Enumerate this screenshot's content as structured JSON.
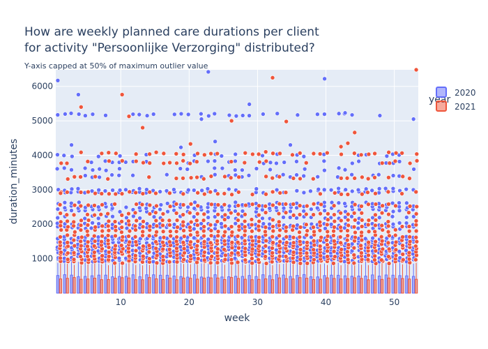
{
  "chart_data": {
    "type": "box",
    "title_lines": [
      "How are weekly planned care durations per client",
      "for activity \"Persoonlijke Verzorging\" distributed?"
    ],
    "subtitle": "Y-axis capped at 50% of maximum outlier value",
    "xlabel": "week",
    "ylabel": "duration_minutes",
    "xlim": [
      0.5,
      53.5
    ],
    "ylim": [
      0,
      6480
    ],
    "xticks": [
      10,
      20,
      30,
      40,
      50
    ],
    "yticks": [
      1000,
      2000,
      3000,
      4000,
      5000,
      6000
    ],
    "xtick_labels": [
      "10",
      "20",
      "30",
      "40",
      "50"
    ],
    "ytick_labels": [
      "1000",
      "2000",
      "3000",
      "4000",
      "5000",
      "6000"
    ],
    "grid": true,
    "legend": {
      "title": "year",
      "placement": "top-right"
    },
    "series": [
      {
        "name": "2020",
        "color": "#636efa",
        "box_top": 500,
        "upper_fence": 900,
        "outlier_levels": [
          950,
          1050,
          1150,
          1250,
          1350,
          1450,
          1550,
          1600,
          1900,
          2000,
          2200,
          2400,
          2500,
          2600,
          2950,
          3000,
          3400,
          3600,
          3800,
          4000,
          5180
        ],
        "extra_outliers": [
          {
            "week": 1,
            "value": 6170
          },
          {
            "week": 4,
            "value": 5760
          },
          {
            "week": 23,
            "value": 6420
          },
          {
            "week": 29,
            "value": 5480
          },
          {
            "week": 40,
            "value": 6220
          },
          {
            "week": 3,
            "value": 4300
          },
          {
            "week": 22,
            "value": 5050
          },
          {
            "week": 24,
            "value": 4400
          },
          {
            "week": 19,
            "value": 4230
          },
          {
            "week": 35,
            "value": 4300
          },
          {
            "week": 43,
            "value": 5230
          },
          {
            "week": 53,
            "value": 5050
          }
        ]
      },
      {
        "name": "2021",
        "color": "#ef553b",
        "box_top": 420,
        "upper_fence": 850,
        "outlier_levels": [
          900,
          1000,
          1100,
          1200,
          1300,
          1400,
          1500,
          1650,
          1800,
          1950,
          2100,
          2300,
          2550,
          2900,
          3350,
          3800,
          4050
        ],
        "extra_outliers": [
          {
            "week": 53,
            "value": 6480
          },
          {
            "week": 32,
            "value": 6250
          },
          {
            "week": 10,
            "value": 5760
          },
          {
            "week": 4,
            "value": 5400
          },
          {
            "week": 11,
            "value": 5130
          },
          {
            "week": 26,
            "value": 5000
          },
          {
            "week": 34,
            "value": 4980
          },
          {
            "week": 13,
            "value": 4800
          },
          {
            "week": 44,
            "value": 4660
          },
          {
            "week": 43,
            "value": 4350
          },
          {
            "week": 20,
            "value": 4330
          },
          {
            "week": 42,
            "value": 4250
          },
          {
            "week": 31,
            "value": 4100
          },
          {
            "week": 38,
            "value": 4050
          },
          {
            "week": 1,
            "value": 2900
          }
        ]
      }
    ]
  }
}
